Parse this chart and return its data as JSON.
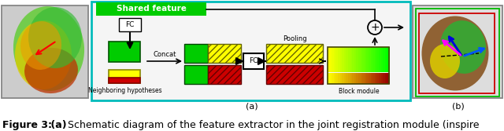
{
  "figsize": [
    6.4,
    1.67
  ],
  "dpi": 100,
  "caption_fontsize": 9.0,
  "label_a": "(a)",
  "label_b": "(b)",
  "bg_color": "#ffffff",
  "diagram_border_color": "#00bbbb",
  "shared_feature_bg": "#00cc00",
  "shared_feature_text": "Shared feature",
  "shared_feature_text_color": "#ffffff",
  "fc_text": "FC",
  "concat_text": "Concat",
  "pooling_text": "Pooling",
  "neighboring_text": "Neighboring hypotheses",
  "block_text": "Block module",
  "green_color": "#00cc00",
  "yellow_color": "#ffff00",
  "red_color": "#cc0000",
  "caption_figure": "Figure 3:",
  "caption_bold_a": " (a)",
  "caption_rest": " Schematic diagram of the feature extractor in the joint registration module (inspire"
}
